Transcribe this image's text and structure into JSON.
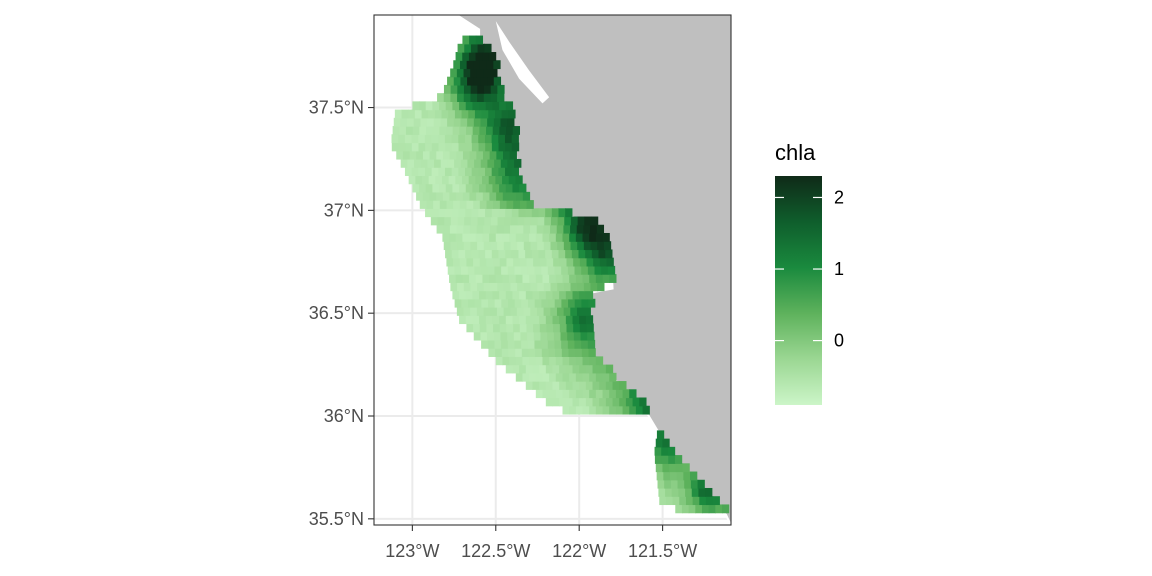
{
  "chart_data": {
    "type": "heatmap",
    "kind": "map",
    "title": "",
    "xlabel": "",
    "ylabel": "",
    "x_ticks": [
      {
        "value": -123.0,
        "label": "123°W"
      },
      {
        "value": -122.5,
        "label": "122.5°W"
      },
      {
        "value": -122.0,
        "label": "122°W"
      },
      {
        "value": -121.5,
        "label": "121.5°W"
      }
    ],
    "y_ticks": [
      {
        "value": 35.5,
        "label": "35.5°N"
      },
      {
        "value": 36.0,
        "label": "36°N"
      },
      {
        "value": 36.5,
        "label": "36.5°N"
      },
      {
        "value": 37.0,
        "label": "37°N"
      },
      {
        "value": 37.5,
        "label": "37.5°N"
      }
    ],
    "xlim": [
      -123.23,
      -121.09
    ],
    "ylim": [
      35.47,
      37.95
    ],
    "grid": true,
    "land_color": "#bfbfbf",
    "legend": {
      "title": "chla",
      "placement": "right",
      "range": [
        -0.9,
        2.3
      ],
      "breaks": [
        {
          "value": 0,
          "label": "0"
        },
        {
          "value": 1,
          "label": "1"
        },
        {
          "value": 2,
          "label": "2"
        }
      ],
      "colors": [
        "#ccf5c8",
        "#9bd793",
        "#5eb25c",
        "#1a8a3e",
        "#0f5e2c",
        "#0f2a18"
      ]
    },
    "region_note_units": "degrees",
    "coast": [
      [
        -122.6,
        37.83
      ],
      [
        -122.5,
        37.68
      ],
      [
        -122.48,
        37.55
      ],
      [
        -122.4,
        37.43
      ],
      [
        -122.38,
        37.28
      ],
      [
        -122.36,
        37.1
      ],
      [
        -122.25,
        36.98
      ],
      [
        -122.05,
        36.97
      ],
      [
        -121.9,
        36.93
      ],
      [
        -121.81,
        36.78
      ],
      [
        -121.8,
        36.62
      ],
      [
        -121.93,
        36.6
      ],
      [
        -121.95,
        36.5
      ],
      [
        -121.93,
        36.3
      ],
      [
        -121.82,
        36.2
      ],
      [
        -121.62,
        36.05
      ],
      [
        -121.45,
        35.82
      ],
      [
        -121.25,
        35.62
      ],
      [
        -121.12,
        35.52
      ]
    ],
    "offshore": [
      [
        -122.0,
        35.97
      ],
      [
        -122.2,
        36.05
      ],
      [
        -122.5,
        36.25
      ],
      [
        -122.72,
        36.45
      ],
      [
        -122.77,
        36.6
      ],
      [
        -122.82,
        36.85
      ],
      [
        -122.95,
        37.0
      ],
      [
        -123.05,
        37.18
      ],
      [
        -123.13,
        37.3
      ],
      [
        -123.1,
        37.48
      ],
      [
        -122.9,
        37.5
      ],
      [
        -122.82,
        37.55
      ],
      [
        -122.75,
        37.7
      ],
      [
        -122.72,
        37.8
      ],
      [
        -122.62,
        37.85
      ]
    ],
    "offshore_south": [
      [
        -121.52,
        35.97
      ],
      [
        -121.55,
        35.8
      ],
      [
        -121.52,
        35.57
      ],
      [
        -121.4,
        35.52
      ]
    ],
    "bloom_centers": [
      {
        "lon": -122.6,
        "lat": 37.7,
        "value": 2.2,
        "r": 0.09
      },
      {
        "lon": -122.65,
        "lat": 37.58,
        "value": 1.6,
        "r": 0.1
      },
      {
        "lon": -122.45,
        "lat": 37.38,
        "value": 1.5,
        "r": 0.1
      },
      {
        "lon": -122.4,
        "lat": 37.15,
        "value": 1.0,
        "r": 0.1
      },
      {
        "lon": -121.98,
        "lat": 36.92,
        "value": 2.0,
        "r": 0.1
      },
      {
        "lon": -121.86,
        "lat": 36.78,
        "value": 1.4,
        "r": 0.09
      },
      {
        "lon": -122.0,
        "lat": 36.45,
        "value": 1.3,
        "r": 0.08
      },
      {
        "lon": -121.6,
        "lat": 36.05,
        "value": 1.1,
        "r": 0.1
      },
      {
        "lon": -121.5,
        "lat": 35.85,
        "value": 1.0,
        "r": 0.08
      },
      {
        "lon": -121.25,
        "lat": 35.62,
        "value": 1.3,
        "r": 0.07
      }
    ]
  }
}
